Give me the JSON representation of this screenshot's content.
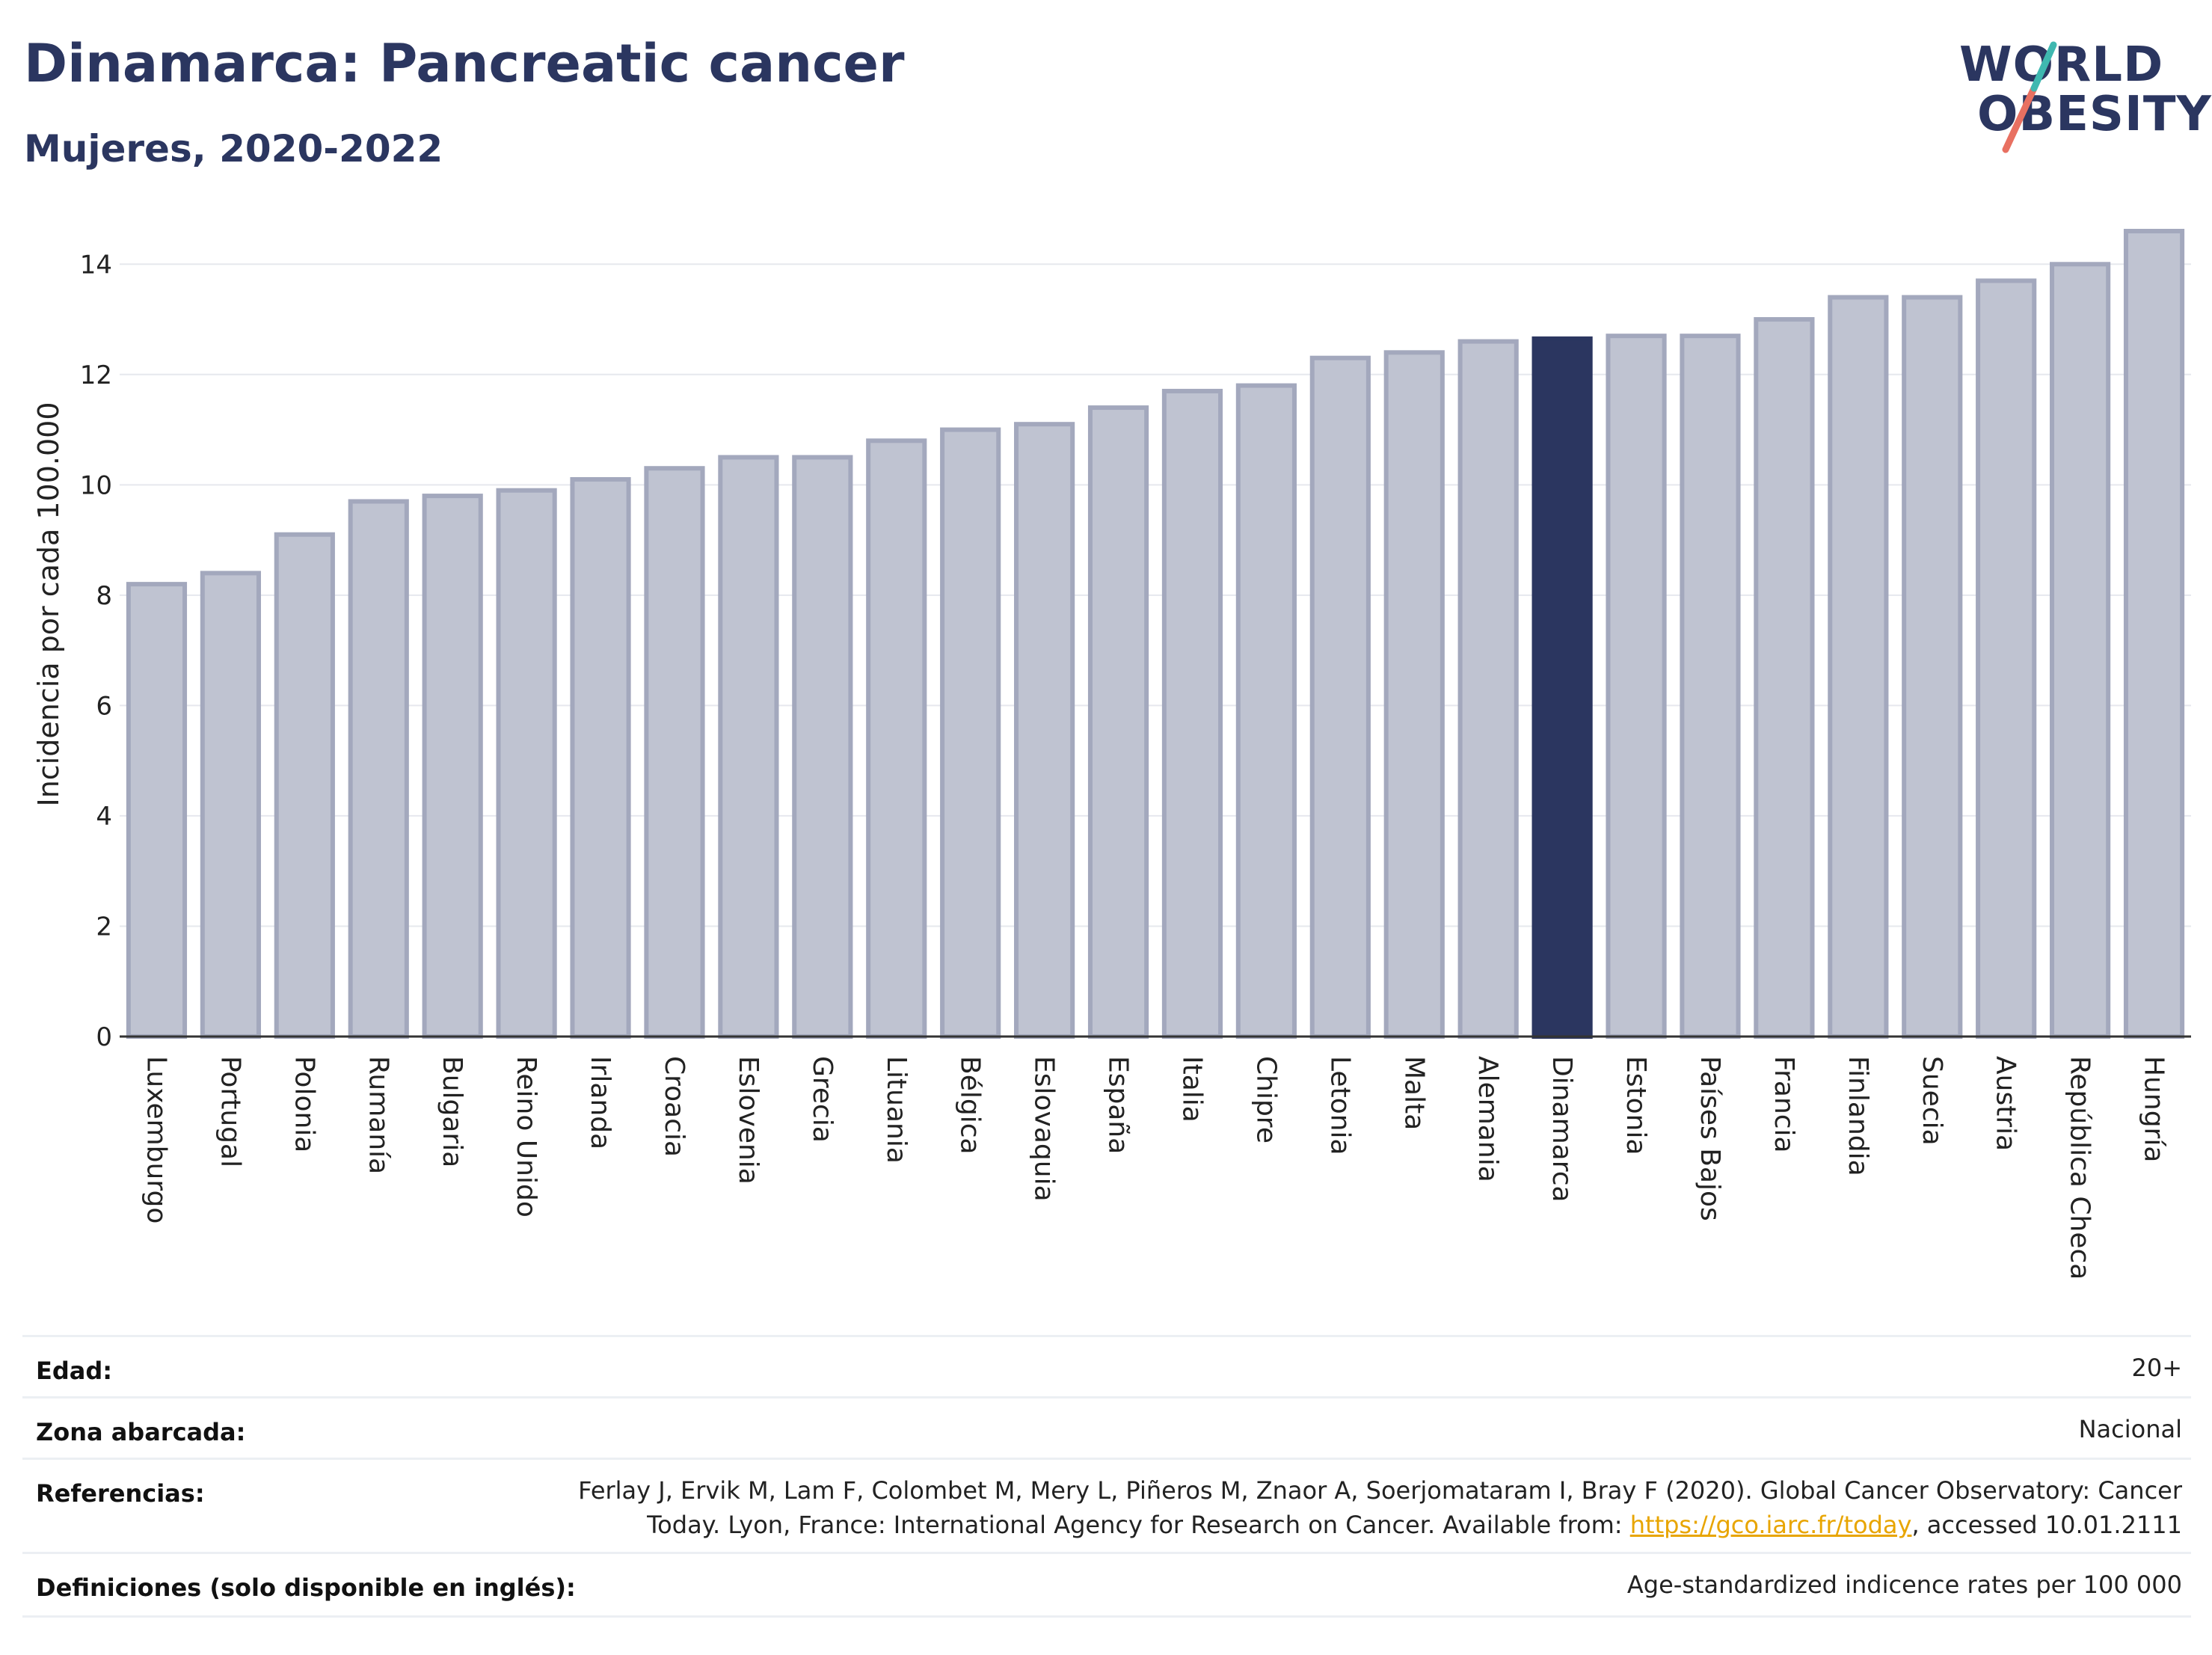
{
  "header": {
    "title": "Dinamarca: Pancreatic cancer",
    "subtitle": "Mujeres, 2020-2022"
  },
  "logo": {
    "line1": "WORLD",
    "line2": "OBESITY"
  },
  "colors": {
    "bar": "#bfc3d1",
    "bar_border": "#a3a8bd",
    "highlight": "#2b3660",
    "grid": "#e6e8ee",
    "title": "#2b3660"
  },
  "chart_data": {
    "type": "bar",
    "ylabel": "Incidencia por cada 100.000",
    "ylim": [
      0,
      15.4
    ],
    "yticks": [
      0,
      2,
      4,
      6,
      8,
      10,
      12,
      14
    ],
    "grid": true,
    "highlight": "Dinamarca",
    "categories": [
      "Luxemburgo",
      "Portugal",
      "Polonia",
      "Rumanía",
      "Bulgaria",
      "Reino Unido",
      "Irlanda",
      "Croacia",
      "Eslovenia",
      "Grecia",
      "Lituania",
      "Bélgica",
      "Eslovaquia",
      "España",
      "Italia",
      "Chipre",
      "Letonia",
      "Malta",
      "Alemania",
      "Dinamarca",
      "Estonia",
      "Países Bajos",
      "Francia",
      "Finlandia",
      "Suecia",
      "Austria",
      "República Checa",
      "Hungría"
    ],
    "values": [
      8.2,
      8.4,
      9.1,
      9.7,
      9.8,
      9.9,
      10.1,
      10.3,
      10.5,
      10.5,
      10.8,
      11.0,
      11.1,
      11.4,
      11.7,
      11.8,
      12.3,
      12.4,
      12.6,
      12.65,
      12.7,
      12.7,
      13.0,
      13.4,
      13.4,
      13.7,
      14.0,
      14.6
    ]
  },
  "info": {
    "age_label": "Edad:",
    "age_value": "20+",
    "zone_label": "Zona abarcada:",
    "zone_value": "Nacional",
    "refs_label": "Referencias:",
    "refs_line1": "Ferlay J, Ervik M, Lam F, Colombet M, Mery L, Piñeros M, Znaor A, Soerjomataram I, Bray F (2020). Global Cancer Observatory: Cancer",
    "refs_line2_pre": "Today. Lyon, France: International Agency for Research on Cancer. Available from: ",
    "refs_link": "https://gco.iarc.fr/today",
    "refs_line2_post": ", accessed 10.01.2111",
    "defs_label": "Definiciones (solo disponible en inglés):",
    "defs_value": "Age-standardized indicence rates per 100 000"
  }
}
